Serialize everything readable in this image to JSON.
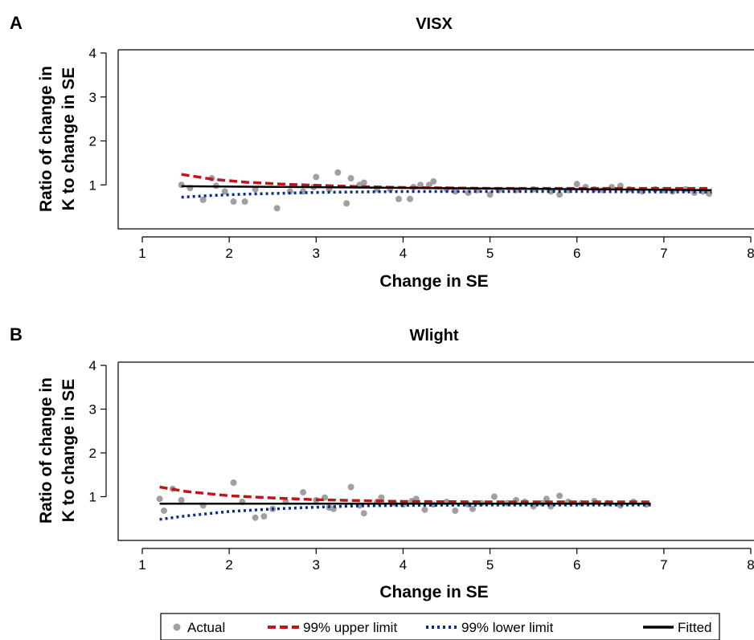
{
  "colors": {
    "actual": "#a0a0a0",
    "upper": "#c0141b",
    "lower": "#0a2a8c",
    "fitted": "#000000"
  },
  "legend": {
    "items": [
      {
        "key": "actual",
        "label": "Actual",
        "style": "dot"
      },
      {
        "key": "upper",
        "label": "99% upper limit",
        "style": "dashed"
      },
      {
        "key": "lower",
        "label": "99% lower limit",
        "style": "dotted"
      },
      {
        "key": "fitted",
        "label": "Fitted",
        "style": "solid"
      }
    ]
  },
  "chart_data": [
    {
      "panel": "A",
      "type": "scatter",
      "title": "VISX",
      "xlabel": "Change in SE",
      "ylabel_line1": "Ratio of change in",
      "ylabel_line2": "K to change in SE",
      "xlim": [
        1,
        8
      ],
      "ylim": [
        0,
        4
      ],
      "xticks": [
        1,
        2,
        3,
        4,
        5,
        6,
        7,
        8
      ],
      "yticks": [
        1,
        2,
        3,
        4
      ],
      "actual": [
        [
          1.45,
          1.0
        ],
        [
          1.55,
          0.93
        ],
        [
          1.7,
          0.66
        ],
        [
          1.8,
          1.15
        ],
        [
          1.85,
          0.98
        ],
        [
          1.95,
          0.85
        ],
        [
          2.05,
          0.62
        ],
        [
          2.18,
          0.62
        ],
        [
          2.3,
          0.9
        ],
        [
          2.55,
          0.47
        ],
        [
          2.7,
          0.85
        ],
        [
          2.85,
          0.85
        ],
        [
          2.97,
          0.95
        ],
        [
          3.0,
          1.18
        ],
        [
          3.15,
          0.9
        ],
        [
          3.25,
          1.28
        ],
        [
          3.35,
          0.58
        ],
        [
          3.4,
          1.15
        ],
        [
          3.5,
          1.0
        ],
        [
          3.55,
          1.05
        ],
        [
          3.7,
          0.9
        ],
        [
          3.85,
          0.9
        ],
        [
          3.95,
          0.68
        ],
        [
          4.08,
          0.68
        ],
        [
          4.12,
          0.95
        ],
        [
          4.2,
          1.0
        ],
        [
          4.3,
          1.0
        ],
        [
          4.35,
          1.08
        ],
        [
          4.5,
          0.9
        ],
        [
          4.6,
          0.85
        ],
        [
          4.75,
          0.82
        ],
        [
          4.85,
          0.88
        ],
        [
          5.0,
          0.78
        ],
        [
          5.1,
          0.88
        ],
        [
          5.3,
          0.88
        ],
        [
          5.5,
          0.9
        ],
        [
          5.7,
          0.85
        ],
        [
          5.8,
          0.78
        ],
        [
          5.9,
          0.88
        ],
        [
          6.0,
          1.02
        ],
        [
          6.1,
          0.95
        ],
        [
          6.2,
          0.9
        ],
        [
          6.3,
          0.88
        ],
        [
          6.4,
          0.95
        ],
        [
          6.5,
          0.98
        ],
        [
          6.6,
          0.9
        ],
        [
          6.75,
          0.85
        ],
        [
          6.9,
          0.9
        ],
        [
          7.0,
          0.88
        ],
        [
          7.1,
          0.85
        ],
        [
          7.25,
          0.9
        ],
        [
          7.35,
          0.82
        ],
        [
          7.45,
          0.85
        ],
        [
          7.52,
          0.8
        ]
      ],
      "fitted": [
        [
          1.45,
          0.97
        ],
        [
          7.55,
          0.88
        ]
      ],
      "upper": [
        [
          1.45,
          1.24
        ],
        [
          1.8,
          1.13
        ],
        [
          2.2,
          1.06
        ],
        [
          2.6,
          1.02
        ],
        [
          3.0,
          0.99
        ],
        [
          3.5,
          0.96
        ],
        [
          4.0,
          0.94
        ],
        [
          5.0,
          0.92
        ],
        [
          6.0,
          0.92
        ],
        [
          7.0,
          0.92
        ],
        [
          7.55,
          0.92
        ]
      ],
      "lower": [
        [
          1.45,
          0.72
        ],
        [
          1.8,
          0.76
        ],
        [
          2.2,
          0.79
        ],
        [
          2.6,
          0.81
        ],
        [
          3.0,
          0.83
        ],
        [
          3.5,
          0.84
        ],
        [
          4.0,
          0.85
        ],
        [
          5.0,
          0.85
        ],
        [
          6.0,
          0.85
        ],
        [
          7.0,
          0.84
        ],
        [
          7.55,
          0.84
        ]
      ]
    },
    {
      "panel": "B",
      "type": "scatter",
      "title": "Wlight",
      "xlabel": "Change in SE",
      "ylabel_line1": "Ratio of change in",
      "ylabel_line2": "K to change in SE",
      "xlim": [
        1,
        8
      ],
      "ylim": [
        0,
        4
      ],
      "xticks": [
        1,
        2,
        3,
        4,
        5,
        6,
        7,
        8
      ],
      "yticks": [
        1,
        2,
        3,
        4
      ],
      "actual": [
        [
          1.2,
          0.95
        ],
        [
          1.25,
          0.68
        ],
        [
          1.35,
          1.18
        ],
        [
          1.45,
          0.92
        ],
        [
          1.7,
          0.8
        ],
        [
          2.05,
          1.32
        ],
        [
          2.15,
          0.88
        ],
        [
          2.3,
          0.52
        ],
        [
          2.4,
          0.55
        ],
        [
          2.5,
          0.72
        ],
        [
          2.65,
          0.88
        ],
        [
          2.85,
          1.1
        ],
        [
          3.0,
          0.92
        ],
        [
          3.1,
          0.98
        ],
        [
          3.15,
          0.75
        ],
        [
          3.2,
          0.72
        ],
        [
          3.4,
          1.22
        ],
        [
          3.5,
          0.8
        ],
        [
          3.55,
          0.62
        ],
        [
          3.7,
          0.88
        ],
        [
          3.75,
          0.98
        ],
        [
          3.9,
          0.85
        ],
        [
          4.0,
          0.82
        ],
        [
          4.1,
          0.9
        ],
        [
          4.15,
          0.95
        ],
        [
          4.25,
          0.7
        ],
        [
          4.35,
          0.82
        ],
        [
          4.5,
          0.88
        ],
        [
          4.6,
          0.68
        ],
        [
          4.75,
          0.82
        ],
        [
          4.8,
          0.72
        ],
        [
          4.9,
          0.85
        ],
        [
          5.05,
          1.0
        ],
        [
          5.2,
          0.85
        ],
        [
          5.3,
          0.92
        ],
        [
          5.4,
          0.88
        ],
        [
          5.5,
          0.78
        ],
        [
          5.6,
          0.85
        ],
        [
          5.65,
          0.95
        ],
        [
          5.7,
          0.78
        ],
        [
          5.8,
          1.02
        ],
        [
          5.9,
          0.88
        ],
        [
          6.05,
          0.85
        ],
        [
          6.2,
          0.9
        ],
        [
          6.35,
          0.85
        ],
        [
          6.5,
          0.8
        ],
        [
          6.65,
          0.88
        ],
        [
          6.8,
          0.82
        ]
      ],
      "fitted": [
        [
          1.2,
          0.84
        ],
        [
          6.85,
          0.84
        ]
      ],
      "upper": [
        [
          1.2,
          1.22
        ],
        [
          1.5,
          1.12
        ],
        [
          2.0,
          1.02
        ],
        [
          2.5,
          0.97
        ],
        [
          3.0,
          0.93
        ],
        [
          3.5,
          0.91
        ],
        [
          4.0,
          0.89
        ],
        [
          5.0,
          0.88
        ],
        [
          6.0,
          0.88
        ],
        [
          6.85,
          0.88
        ]
      ],
      "lower": [
        [
          1.2,
          0.48
        ],
        [
          1.5,
          0.56
        ],
        [
          2.0,
          0.66
        ],
        [
          2.5,
          0.72
        ],
        [
          3.0,
          0.76
        ],
        [
          3.5,
          0.79
        ],
        [
          4.0,
          0.8
        ],
        [
          5.0,
          0.81
        ],
        [
          6.0,
          0.81
        ],
        [
          6.85,
          0.81
        ]
      ]
    }
  ]
}
